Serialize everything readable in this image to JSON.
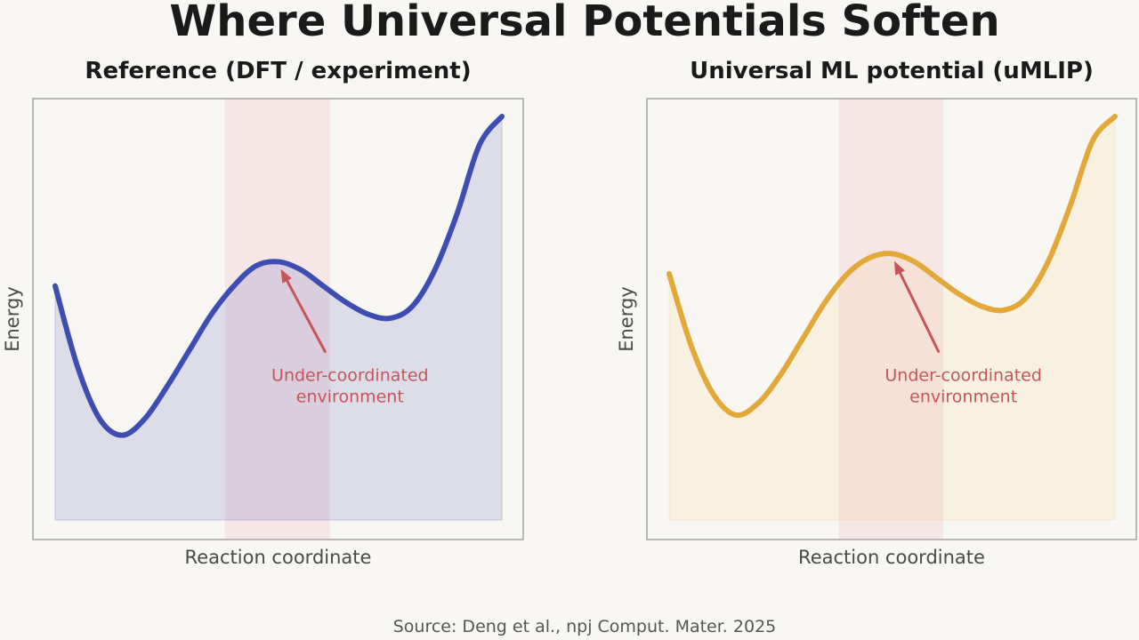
{
  "figure": {
    "title": "Where Universal Potentials Soften",
    "source": "Source: Deng et al., npj Comput. Mater. 2025"
  },
  "chart_data": [
    {
      "type": "line",
      "title": "Reference (DFT / experiment)",
      "xlabel": "Reaction coordinate",
      "ylabel": "Energy",
      "xlim": [
        0,
        1
      ],
      "ylim": [
        0,
        1
      ],
      "grid": false,
      "line_color": "#3d4db2",
      "fill_color": "#3d4db2",
      "x": [
        0.0,
        0.05,
        0.1,
        0.15,
        0.2,
        0.25,
        0.3,
        0.35,
        0.4,
        0.45,
        0.5,
        0.55,
        0.6,
        0.65,
        0.7,
        0.75,
        0.8,
        0.85,
        0.9,
        0.95,
        1.0
      ],
      "y": [
        0.58,
        0.38,
        0.25,
        0.21,
        0.25,
        0.33,
        0.42,
        0.51,
        0.58,
        0.63,
        0.64,
        0.62,
        0.58,
        0.54,
        0.51,
        0.5,
        0.53,
        0.62,
        0.76,
        0.93,
        1.0
      ],
      "highlight_band": {
        "x": [
          0.38,
          0.615
        ],
        "color": "#f4d9d9"
      },
      "annotation": {
        "lines": [
          "Under-coordinated",
          "environment"
        ],
        "point": [
          0.505,
          0.635
        ],
        "text_at": [
          0.66,
          0.38
        ],
        "color": "#c65458"
      }
    },
    {
      "type": "line",
      "title": "Universal ML potential (uMLIP)",
      "xlabel": "Reaction coordinate",
      "ylabel": "Energy",
      "xlim": [
        0,
        1
      ],
      "ylim": [
        0,
        1
      ],
      "grid": false,
      "line_color": "#e3a83a",
      "fill_color": "#f0c978",
      "x": [
        0.0,
        0.05,
        0.1,
        0.15,
        0.2,
        0.25,
        0.3,
        0.35,
        0.4,
        0.45,
        0.5,
        0.55,
        0.6,
        0.65,
        0.7,
        0.75,
        0.8,
        0.85,
        0.9,
        0.95,
        1.0
      ],
      "y": [
        0.61,
        0.43,
        0.31,
        0.26,
        0.29,
        0.36,
        0.45,
        0.54,
        0.61,
        0.65,
        0.66,
        0.64,
        0.6,
        0.56,
        0.53,
        0.52,
        0.55,
        0.64,
        0.78,
        0.94,
        1.0
      ],
      "highlight_band": {
        "x": [
          0.38,
          0.615
        ],
        "color": "#f4d9d9"
      },
      "annotation": {
        "lines": [
          "Under-coordinated",
          "environment"
        ],
        "point": [
          0.505,
          0.655
        ],
        "text_at": [
          0.66,
          0.38
        ],
        "color": "#c65458"
      }
    }
  ]
}
